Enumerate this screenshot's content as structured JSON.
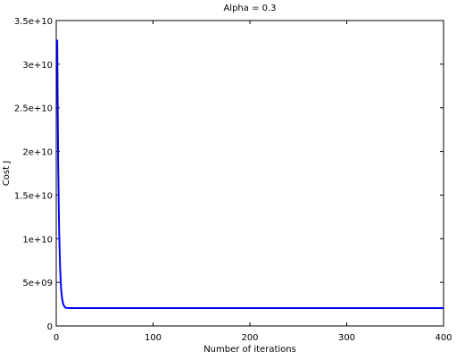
{
  "chart_data": {
    "type": "line",
    "title": "Alpha = 0.3",
    "xlabel": "Number of iterations",
    "ylabel": "Cost J",
    "xlim": [
      0,
      400
    ],
    "ylim": [
      0,
      35000000000
    ],
    "x_ticks": [
      0,
      100,
      200,
      300,
      400
    ],
    "x_tick_labels": [
      "0",
      "100",
      "200",
      "300",
      "400"
    ],
    "y_ticks": [
      0,
      5000000000,
      10000000000,
      15000000000,
      20000000000,
      25000000000,
      30000000000,
      35000000000
    ],
    "y_tick_labels": [
      "0",
      "5e+09",
      "1e+10",
      "1.5e+10",
      "2e+10",
      "2.5e+10",
      "3e+10",
      "3.5e+10"
    ],
    "grid": false,
    "series_color": "#0000ff",
    "series": [
      {
        "x": [
          1,
          2,
          3,
          4,
          5,
          6,
          7,
          8,
          9,
          10,
          12,
          15,
          20,
          30,
          50,
          100,
          200,
          300,
          400
        ],
        "values": [
          32800000000,
          18500000000,
          10900000000,
          6600000000,
          4300000000,
          3200000000,
          2600000000,
          2300000000,
          2150000000,
          2080000000,
          2050000000,
          2045000000,
          2043000000,
          2043000000,
          2043000000,
          2043000000,
          2043000000,
          2043000000,
          2043000000
        ]
      }
    ]
  }
}
